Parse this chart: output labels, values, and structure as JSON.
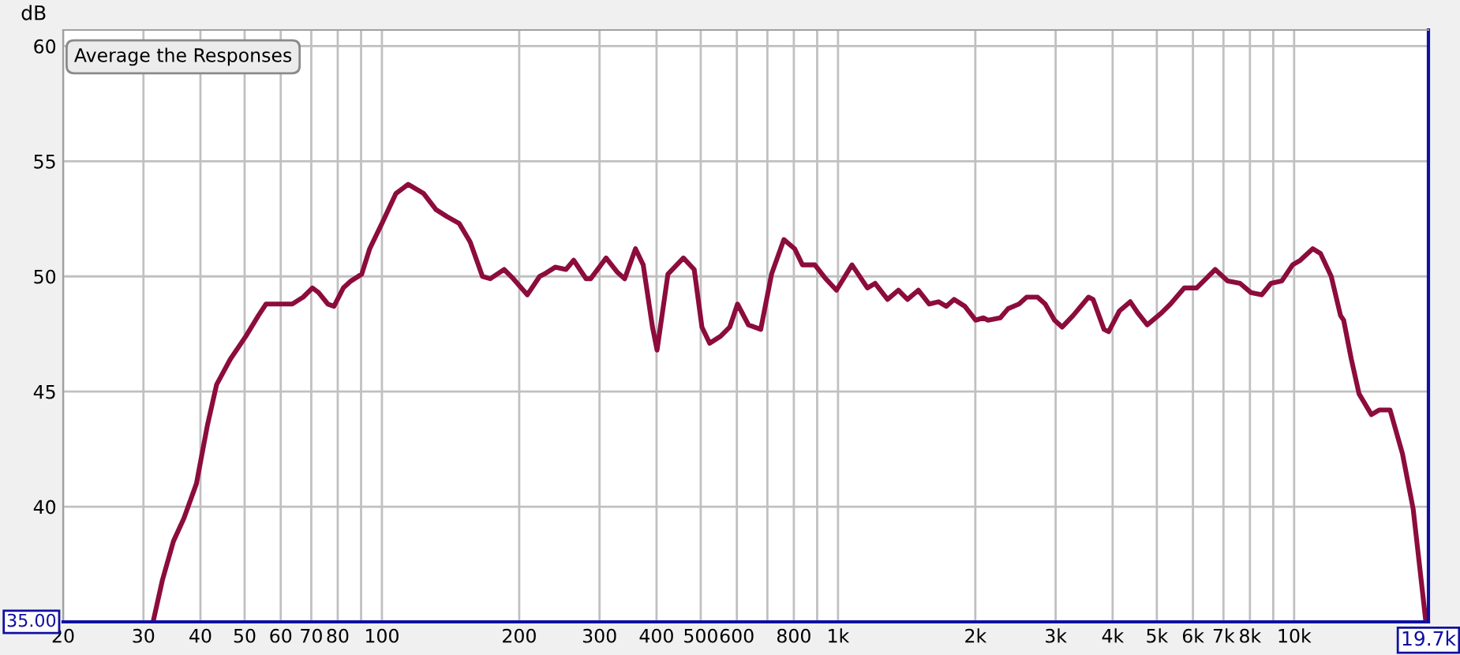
{
  "chart_data": {
    "type": "line",
    "ylabel": "dB",
    "log": "x",
    "grid": true,
    "marker": "none",
    "line_style": "solid",
    "xlim": [
      20,
      19700
    ],
    "ylim": [
      35,
      60.7
    ],
    "xticks": [
      20,
      30,
      40,
      50,
      60,
      70,
      80,
      {
        "value": 90,
        "label": null
      },
      100,
      200,
      300,
      400,
      500,
      600,
      {
        "value": 700,
        "label": null
      },
      800,
      {
        "value": 900,
        "label": null
      },
      {
        "value": 1000,
        "label": "1k"
      },
      {
        "value": 2000,
        "label": "2k"
      },
      {
        "value": 3000,
        "label": "3k"
      },
      {
        "value": 4000,
        "label": "4k"
      },
      {
        "value": 5000,
        "label": "5k"
      },
      {
        "value": 6000,
        "label": "6k"
      },
      {
        "value": 7000,
        "label": "7k"
      },
      {
        "value": 8000,
        "label": "8k"
      },
      {
        "value": 9000,
        "label": null
      },
      {
        "value": 10000,
        "label": "10k"
      }
    ],
    "yticks": [
      40,
      45,
      50,
      55,
      60
    ],
    "annotations": [
      "35.00",
      "19.7k",
      "Average the Responses"
    ],
    "series": [
      {
        "color": "#8c0c3c",
        "x": [
          31.5,
          33.0,
          34.9,
          36.8,
          39.2,
          41.4,
          43.4,
          46.5,
          50.3,
          53.6,
          55.7,
          58.8,
          63.6,
          67.2,
          70.4,
          72.6,
          76.1,
          78.5,
          82.3,
          85.5,
          90.3,
          94.0,
          100,
          107.3,
          114.2,
          123.4,
          131.4,
          138.8,
          147.7,
          156.1,
          166.1,
          172.7,
          185.3,
          194.1,
          208.3,
          221.7,
          226.9,
          239.8,
          253.2,
          263.3,
          280.3,
          286.9,
          310.1,
          327.6,
          340.6,
          359.7,
          374.0,
          391.9,
          401.1,
          423.7,
          458.1,
          483.8,
          503.0,
          523.1,
          552.6,
          578.9,
          602.0,
          636.0,
          676.9,
          714.9,
          760.9,
          803.5,
          835.7,
          889.6,
          939.5,
          992.2,
          1073,
          1160,
          1206,
          1284,
          1356,
          1420,
          1500,
          1585,
          1661,
          1727,
          1796,
          1897,
          2003,
          2083,
          2132,
          2269,
          2360,
          2493,
          2592,
          2738,
          2846,
          2983,
          3101,
          3276,
          3542,
          3625,
          3830,
          3920,
          4140,
          4373,
          4548,
          4764,
          5111,
          5357,
          5745,
          6114,
          6714,
          7148,
          7609,
          8036,
          8489,
          8897,
          9395,
          9922,
          10317,
          10983,
          11420,
          12061,
          12640,
          12840,
          13350,
          13880,
          14770,
          15360,
          16230,
          17280,
          18240,
          19420
        ],
        "values": [
          35.0,
          36.8,
          38.5,
          39.5,
          41.0,
          43.5,
          45.3,
          46.4,
          47.4,
          48.3,
          48.8,
          48.8,
          48.8,
          49.1,
          49.5,
          49.3,
          48.8,
          48.7,
          49.5,
          49.8,
          50.1,
          51.2,
          52.3,
          53.6,
          54.0,
          53.6,
          52.9,
          52.6,
          52.3,
          51.5,
          50.0,
          49.9,
          50.3,
          49.9,
          49.2,
          50.0,
          50.1,
          50.4,
          50.3,
          50.7,
          49.9,
          49.9,
          50.8,
          50.2,
          49.9,
          51.2,
          50.5,
          47.8,
          46.8,
          50.1,
          50.8,
          50.3,
          47.8,
          47.1,
          47.4,
          47.8,
          48.8,
          47.9,
          47.7,
          50.1,
          51.6,
          51.2,
          50.5,
          50.5,
          49.9,
          49.4,
          50.5,
          49.5,
          49.7,
          49.0,
          49.4,
          49.0,
          49.4,
          48.8,
          48.9,
          48.7,
          49.0,
          48.7,
          48.1,
          48.2,
          48.1,
          48.2,
          48.6,
          48.8,
          49.1,
          49.1,
          48.8,
          48.1,
          47.8,
          48.3,
          49.1,
          49.0,
          47.7,
          47.6,
          48.5,
          48.9,
          48.4,
          47.9,
          48.4,
          48.8,
          49.5,
          49.5,
          50.3,
          49.8,
          49.7,
          49.3,
          49.2,
          49.7,
          49.8,
          50.5,
          50.7,
          51.2,
          51.0,
          50.0,
          48.3,
          48.1,
          46.4,
          44.9,
          44.0,
          44.2,
          44.2,
          42.3,
          39.9,
          35.1
        ]
      }
    ]
  }
}
